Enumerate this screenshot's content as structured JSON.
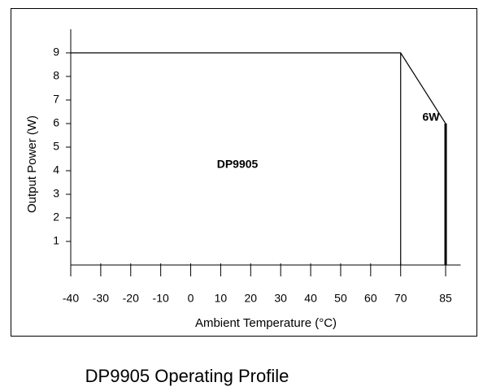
{
  "chart_data": {
    "type": "line",
    "title": "DP9905 Operating Profile",
    "xlabel": "Ambient Temperature (°C)",
    "ylabel": "Output Power (W)",
    "annotations": [
      "DP9905",
      "6W"
    ],
    "series": [
      {
        "color": "#000000",
        "x": [
          -40,
          70,
          85,
          85
        ],
        "values": [
          9,
          9,
          6,
          0
        ]
      },
      {
        "color": "#000000",
        "x": [
          70,
          70
        ],
        "values": [
          9,
          0
        ]
      }
    ],
    "xlim": [
      -40,
      90
    ],
    "ylim": [
      0,
      10
    ],
    "xticks": [
      -40,
      -30,
      -20,
      -10,
      0,
      10,
      20,
      30,
      40,
      50,
      60,
      70,
      85
    ],
    "yticks": [
      1,
      2,
      3,
      4,
      5,
      6,
      7,
      8,
      9
    ]
  }
}
